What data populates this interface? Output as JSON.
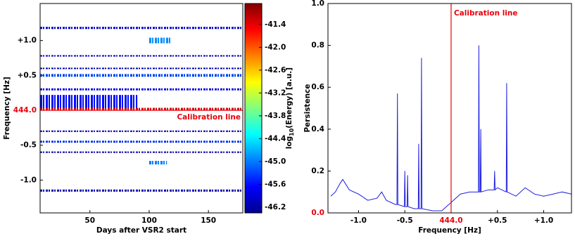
{
  "chart_data": [
    {
      "type": "heatmap",
      "xlabel": "Days after VSR2 start",
      "ylabel": "Frequency [Hz]",
      "xlim": [
        8,
        179
      ],
      "xticks": [
        50,
        100,
        150
      ],
      "ylim": [
        -1.47,
        1.53
      ],
      "yticks": [
        {
          "value": -1.0,
          "label": "-1.0"
        },
        {
          "value": -0.5,
          "label": "-0.5"
        },
        {
          "value": 0,
          "label": "444.0"
        },
        {
          "value": 0.5,
          "label": "+0.5"
        },
        {
          "value": 1.0,
          "label": "+1.0"
        }
      ],
      "calibration": {
        "value": 0,
        "label": "Calibration line",
        "color": "#e8000b"
      },
      "colorbar": {
        "label_prefix": "log",
        "label_sub": "10",
        "label_suffix": "(Energy) [a.u.]",
        "clim": [
          -46.35,
          -40.85
        ],
        "cticks": [
          -41.4,
          {
            "value": -42.0,
            "label": "-42.0"
          },
          -42.6,
          -43.2,
          -43.8,
          -44.4,
          {
            "value": -45.0,
            "label": "-45.0"
          },
          -45.6,
          -46.2
        ]
      },
      "bands": [
        {
          "freq": 1.18,
          "days": [
            8,
            179
          ],
          "width": 0.03,
          "value": -45.9
        },
        {
          "freq": 1.0,
          "days": [
            100,
            118
          ],
          "width": 0.08,
          "value": -44.9
        },
        {
          "freq": 0.78,
          "days": [
            8,
            179
          ],
          "width": 0.02,
          "value": -46.0
        },
        {
          "freq": 0.6,
          "days": [
            8,
            179
          ],
          "width": 0.02,
          "value": -46.1
        },
        {
          "freq": 0.5,
          "days": [
            8,
            179
          ],
          "width": 0.04,
          "value": -45.3
        },
        {
          "freq": 0.3,
          "days": [
            8,
            179
          ],
          "width": 0.03,
          "value": -45.8
        },
        {
          "freq": 0.12,
          "days": [
            8,
            90
          ],
          "width": 0.2,
          "value": -45.6
        },
        {
          "freq": 0.02,
          "days": [
            8,
            179
          ],
          "width": 0.03,
          "value": -41.3
        },
        {
          "freq": -0.3,
          "days": [
            8,
            179
          ],
          "width": 0.02,
          "value": -46.0
        },
        {
          "freq": -0.45,
          "days": [
            8,
            179
          ],
          "width": 0.03,
          "value": -45.4
        },
        {
          "freq": -0.6,
          "days": [
            8,
            179
          ],
          "width": 0.02,
          "value": -46.1
        },
        {
          "freq": -0.75,
          "days": [
            100,
            115
          ],
          "width": 0.05,
          "value": -45.0
        },
        {
          "freq": -1.15,
          "days": [
            8,
            179
          ],
          "width": 0.03,
          "value": -46.1
        }
      ]
    },
    {
      "type": "line",
      "xlabel": "Frequency [Hz]",
      "ylabel": "Persistence",
      "color": "#1f1fe0",
      "xlim": [
        -1.33,
        1.3
      ],
      "xticks": [
        {
          "value": -1.0,
          "label": "-1.0"
        },
        {
          "value": -0.5,
          "label": "-0.5"
        },
        {
          "value": 0,
          "label": "444.0"
        },
        {
          "value": 0.5,
          "label": "+0.5"
        },
        {
          "value": 1.0,
          "label": "+1.0"
        }
      ],
      "ylim": [
        0,
        1.0
      ],
      "yticks": [
        {
          "value": 0,
          "label": "0.0"
        },
        0.2,
        0.4,
        0.6,
        0.8,
        {
          "value": 1.0,
          "label": "1.0"
        }
      ],
      "calibration": {
        "value": 0,
        "label": "Calibration line",
        "color": "#e8000b"
      },
      "x": [
        -1.3,
        -1.25,
        -1.2,
        -1.17,
        -1.1,
        -1.0,
        -0.9,
        -0.8,
        -0.75,
        -0.7,
        -0.6,
        -0.585,
        -0.58,
        -0.575,
        -0.505,
        -0.5,
        -0.495,
        -0.475,
        -0.47,
        -0.465,
        -0.4,
        -0.355,
        -0.35,
        -0.345,
        -0.325,
        -0.32,
        -0.315,
        -0.2,
        -0.1,
        0,
        0.1,
        0.2,
        0.295,
        0.3,
        0.305,
        0.315,
        0.32,
        0.325,
        0.4,
        0.465,
        0.47,
        0.475,
        0.5,
        0.595,
        0.6,
        0.605,
        0.7,
        0.8,
        0.9,
        1.0,
        1.1,
        1.2,
        1.3
      ],
      "values": [
        0.08,
        0.1,
        0.14,
        0.16,
        0.11,
        0.09,
        0.06,
        0.07,
        0.1,
        0.06,
        0.04,
        0.04,
        0.57,
        0.04,
        0.03,
        0.2,
        0.03,
        0.03,
        0.18,
        0.03,
        0.02,
        0.02,
        0.33,
        0.02,
        0.02,
        0.74,
        0.02,
        0.01,
        0.01,
        0.05,
        0.09,
        0.1,
        0.1,
        0.8,
        0.1,
        0.1,
        0.4,
        0.1,
        0.11,
        0.11,
        0.2,
        0.11,
        0.12,
        0.1,
        0.62,
        0.1,
        0.08,
        0.12,
        0.09,
        0.08,
        0.09,
        0.1,
        0.09
      ]
    }
  ]
}
